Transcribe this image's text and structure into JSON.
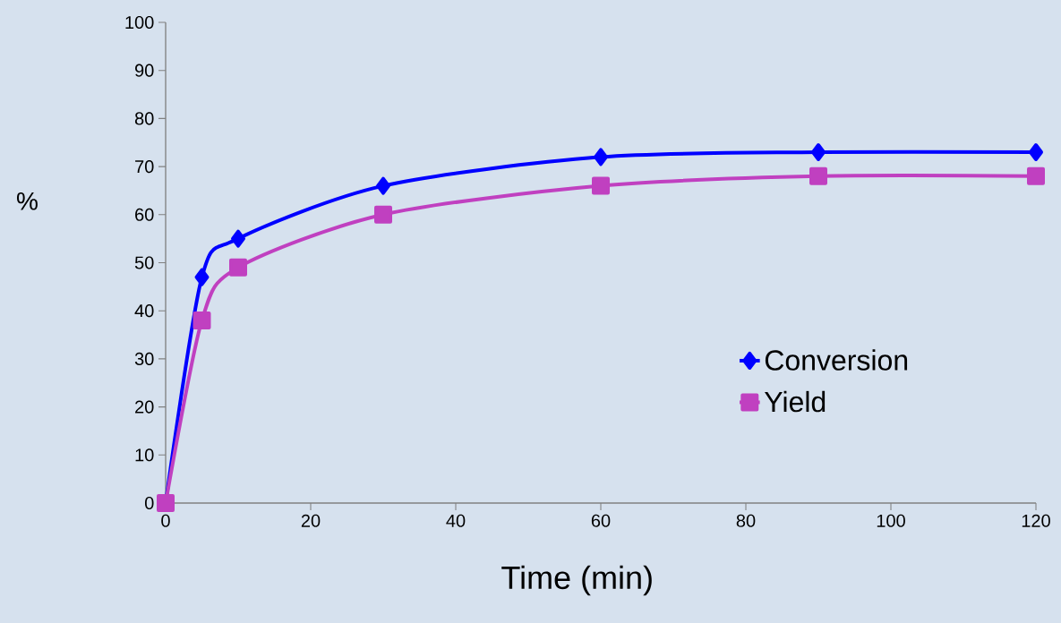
{
  "chart_data": {
    "type": "line",
    "xlabel": "Time (min)",
    "ylabel": "%",
    "x": [
      0,
      5,
      10,
      30,
      60,
      90,
      120
    ],
    "series": [
      {
        "name": "Conversion",
        "color": "#0000ff",
        "marker": "diamond",
        "values": [
          0,
          47,
          55,
          66,
          72,
          73,
          73
        ]
      },
      {
        "name": "Yield",
        "color": "#c040c0",
        "marker": "square",
        "values": [
          0,
          38,
          49,
          60,
          66,
          68,
          68
        ]
      }
    ],
    "xlim": [
      0,
      120
    ],
    "xticks": [
      0,
      20,
      40,
      60,
      80,
      100,
      120
    ],
    "ylim": [
      0,
      100
    ],
    "yticks": [
      0,
      10,
      20,
      30,
      40,
      50,
      60,
      70,
      80,
      90,
      100
    ],
    "grid": false,
    "legend": "right",
    "line_style": "solid"
  }
}
